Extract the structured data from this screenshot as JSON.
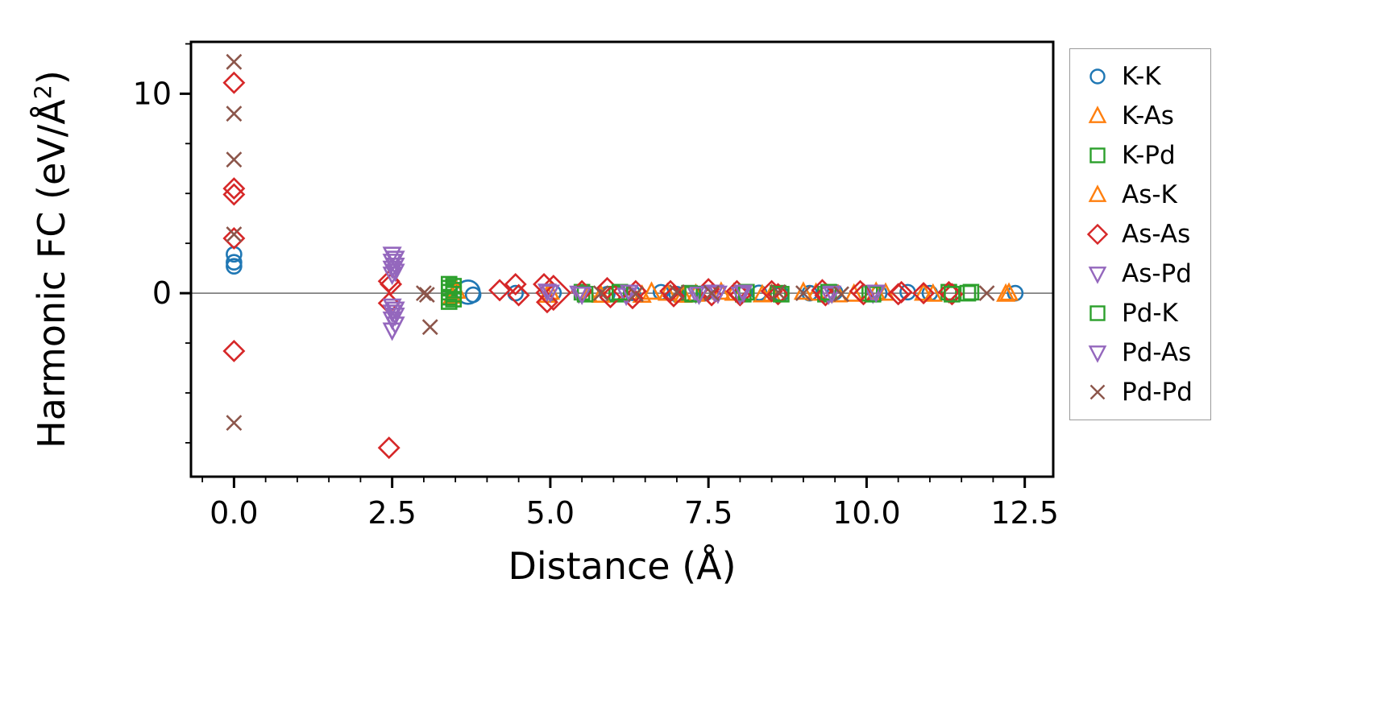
{
  "chart_data": {
    "type": "scatter",
    "title": "",
    "xlabel": "Distance (Å)",
    "ylabel": "Harmonic FC (eV/Å²)",
    "ylabel_parts": {
      "pre": "Harmonic FC (eV/Å",
      "sup": "2",
      "post": ")"
    },
    "xlim": [
      -0.68,
      12.95
    ],
    "ylim": [
      -9.2,
      12.6
    ],
    "xticks": {
      "values": [
        0,
        2.5,
        5,
        7.5,
        10,
        12.5
      ],
      "labels": [
        "0.0",
        "2.5",
        "5.0",
        "7.5",
        "10.0",
        "12.5"
      ],
      "minor_step": 0.5
    },
    "yticks": {
      "values": [
        0,
        10
      ],
      "labels": [
        "0",
        "10"
      ],
      "minor_step": 2.5
    },
    "grid": false,
    "zero_line": {
      "show": true,
      "color": "#808080"
    },
    "legend_position": "outside-right",
    "axis_color": "#000000",
    "legend_border_color": "#9a9a9a",
    "series": [
      {
        "name": "K-K",
        "marker": "circle",
        "color": "#1f77b4",
        "points": [
          [
            0,
            1.95
          ],
          [
            0,
            1.55
          ],
          [
            0,
            1.35
          ],
          [
            3.7,
            0.05,
            1.6
          ],
          [
            3.78,
            -0.08
          ],
          [
            4.45,
            0
          ],
          [
            5.05,
            0.02
          ],
          [
            5.9,
            -0.05
          ],
          [
            6.3,
            0.02
          ],
          [
            6.75,
            0.05
          ],
          [
            7.0,
            -0.05
          ],
          [
            7.45,
            0
          ],
          [
            8.3,
            0.02
          ],
          [
            8.65,
            -0.05
          ],
          [
            9.1,
            0
          ],
          [
            9.5,
            0.05
          ],
          [
            10.2,
            0
          ],
          [
            10.65,
            0.05
          ],
          [
            11.0,
            0
          ],
          [
            12.35,
            0
          ]
        ]
      },
      {
        "name": "K-As",
        "marker": "triangle-up",
        "color": "#ff7f0e",
        "points": [
          [
            3.45,
            -0.15
          ],
          [
            4.95,
            -0.1
          ],
          [
            5.6,
            -0.08
          ],
          [
            6.45,
            -0.1
          ],
          [
            6.85,
            0
          ],
          [
            7.3,
            -0.05
          ],
          [
            7.9,
            0
          ],
          [
            8.5,
            -0.05
          ],
          [
            9.2,
            0
          ],
          [
            9.8,
            -0.05
          ],
          [
            10.3,
            0
          ],
          [
            11.05,
            -0.05
          ],
          [
            12.2,
            -0.05
          ]
        ]
      },
      {
        "name": "K-Pd",
        "marker": "square",
        "color": "#2ca02c",
        "points": [
          [
            3.4,
            0.45
          ],
          [
            3.4,
            0.25
          ],
          [
            3.4,
            0.05
          ],
          [
            3.4,
            -0.2
          ],
          [
            3.4,
            -0.42
          ],
          [
            5.5,
            0.05
          ],
          [
            6.05,
            -0.05
          ],
          [
            7.2,
            0
          ],
          [
            8.05,
            -0.05
          ],
          [
            8.6,
            0
          ],
          [
            9.35,
            -0.05
          ],
          [
            10.05,
            0
          ],
          [
            11.3,
            0.05
          ],
          [
            11.6,
            0
          ]
        ]
      },
      {
        "name": "As-K",
        "marker": "triangle-up",
        "color": "#ff7f0e",
        "points": [
          [
            3.52,
            0.1
          ],
          [
            5.0,
            0.05
          ],
          [
            5.8,
            -0.1
          ],
          [
            6.6,
            0.05
          ],
          [
            7.1,
            -0.1
          ],
          [
            7.7,
            0.05
          ],
          [
            8.35,
            -0.08
          ],
          [
            9.0,
            0.05
          ],
          [
            9.55,
            -0.08
          ],
          [
            10.15,
            0.05
          ],
          [
            10.9,
            0
          ],
          [
            12.25,
            0
          ]
        ]
      },
      {
        "name": "As-As",
        "marker": "diamond",
        "color": "#d62728",
        "points": [
          [
            0,
            10.55
          ],
          [
            0,
            5.25
          ],
          [
            0,
            4.95
          ],
          [
            0,
            2.75
          ],
          [
            0,
            -2.9
          ],
          [
            2.45,
            0.6
          ],
          [
            2.48,
            0.45
          ],
          [
            2.45,
            -0.5
          ],
          [
            2.45,
            -7.75
          ],
          [
            4.2,
            0.15
          ],
          [
            4.45,
            0.45
          ],
          [
            4.5,
            -0.1
          ],
          [
            4.9,
            0.45
          ],
          [
            4.95,
            -0.45
          ],
          [
            5.05,
            0.02,
            1.7
          ],
          [
            5.5,
            0.1
          ],
          [
            5.9,
            0.25
          ],
          [
            5.95,
            -0.2
          ],
          [
            6.3,
            -0.25
          ],
          [
            6.35,
            0.1
          ],
          [
            6.9,
            0.1
          ],
          [
            6.95,
            -0.15
          ],
          [
            7.5,
            0.2
          ],
          [
            7.55,
            -0.1
          ],
          [
            7.95,
            0.1
          ],
          [
            8.0,
            -0.1
          ],
          [
            8.5,
            0.1
          ],
          [
            8.6,
            -0.05
          ],
          [
            9.3,
            0.15
          ],
          [
            9.35,
            -0.1
          ],
          [
            9.9,
            0.1
          ],
          [
            9.95,
            -0.05
          ],
          [
            10.5,
            -0.05
          ],
          [
            10.55,
            0.05
          ],
          [
            10.9,
            0
          ],
          [
            11.3,
            0.05
          ],
          [
            11.35,
            -0.05
          ]
        ]
      },
      {
        "name": "As-Pd",
        "marker": "triangle-down",
        "color": "#9467bd",
        "points": [
          [
            2.5,
            1.95
          ],
          [
            2.5,
            1.6
          ],
          [
            2.5,
            1.25
          ],
          [
            2.5,
            0.95
          ],
          [
            2.5,
            -0.65
          ],
          [
            2.5,
            -0.95
          ],
          [
            2.5,
            -1.3
          ],
          [
            2.5,
            -1.85
          ],
          [
            4.95,
            0.1
          ],
          [
            5.45,
            0
          ],
          [
            6.2,
            -0.1
          ],
          [
            7.3,
            0
          ],
          [
            7.6,
            0.05
          ],
          [
            8.0,
            -0.05
          ],
          [
            9.4,
            -0.05
          ],
          [
            10.1,
            0
          ]
        ]
      },
      {
        "name": "Pd-K",
        "marker": "square",
        "color": "#2ca02c",
        "points": [
          [
            3.47,
            0.35
          ],
          [
            3.47,
            0.15
          ],
          [
            3.47,
            -0.05
          ],
          [
            3.47,
            -0.3
          ],
          [
            5.55,
            -0.05
          ],
          [
            6.1,
            0.05
          ],
          [
            7.25,
            -0.05
          ],
          [
            8.1,
            0.05
          ],
          [
            8.65,
            -0.05
          ],
          [
            9.4,
            0.05
          ],
          [
            10.1,
            -0.05
          ],
          [
            11.35,
            -0.05
          ],
          [
            11.65,
            0.05
          ]
        ]
      },
      {
        "name": "Pd-As",
        "marker": "triangle-down",
        "color": "#9467bd",
        "points": [
          [
            2.55,
            1.75
          ],
          [
            2.55,
            1.4
          ],
          [
            2.55,
            1.1
          ],
          [
            2.55,
            -0.8
          ],
          [
            2.55,
            -1.1
          ],
          [
            2.55,
            -1.55
          ],
          [
            5.0,
            0.05
          ],
          [
            5.5,
            -0.05
          ],
          [
            6.25,
            0.05
          ],
          [
            7.35,
            -0.05
          ],
          [
            7.65,
            0
          ],
          [
            8.05,
            0.05
          ],
          [
            9.45,
            0
          ],
          [
            10.15,
            0.05
          ]
        ]
      },
      {
        "name": "Pd-Pd",
        "marker": "x",
        "color": "#8c564b",
        "points": [
          [
            0,
            11.6
          ],
          [
            0,
            9.0
          ],
          [
            0,
            6.7
          ],
          [
            0,
            2.95
          ],
          [
            0,
            -6.5
          ],
          [
            3.0,
            0
          ],
          [
            3.05,
            -0.08
          ],
          [
            3.1,
            -1.7
          ],
          [
            5.8,
            0
          ],
          [
            6.35,
            -0.05
          ],
          [
            7.0,
            0.05
          ],
          [
            7.55,
            0
          ],
          [
            8.6,
            0.05
          ],
          [
            9.0,
            0
          ],
          [
            9.6,
            -0.05
          ],
          [
            11.9,
            0
          ]
        ]
      }
    ]
  }
}
